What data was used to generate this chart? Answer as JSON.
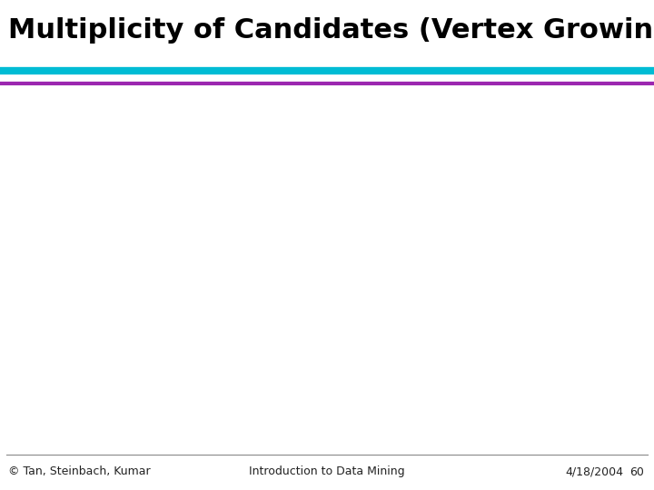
{
  "title": "Multiplicity of Candidates (Vertex Growing)",
  "title_fontsize": 22,
  "title_fontweight": "bold",
  "title_color": "#000000",
  "bg_color": "#ffffff",
  "line1_color": "#00bcd4",
  "line2_color": "#9c27b0",
  "line1_lw": 6,
  "line2_lw": 3,
  "footer_left": "© Tan, Steinbach, Kumar",
  "footer_center": "Introduction to Data Mining",
  "footer_right": "4/18/2004",
  "footer_page": "60",
  "footer_fontsize": 9
}
